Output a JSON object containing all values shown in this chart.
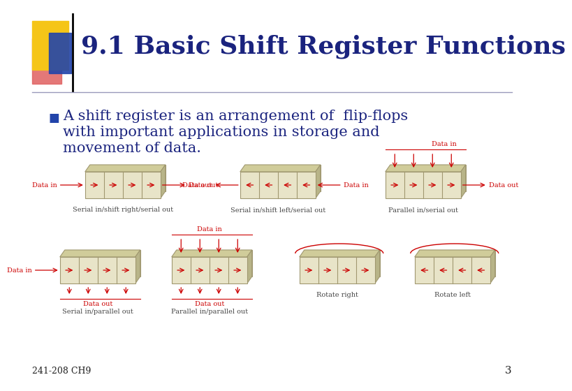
{
  "title": "9.1 Basic Shift Register Functions",
  "title_color": "#1a237e",
  "bg_color": "#ffffff",
  "bullet_text_line1": "A shift register is an arrangement of  flip-flops",
  "bullet_text_line2": "with important applications in storage and",
  "bullet_text_line3": "movement of data.",
  "bullet_color": "#1a237e",
  "accent_yellow": "#f5c518",
  "accent_red": "#cc2222",
  "accent_blue": "#2244aa",
  "accent_pink": "#e06060",
  "register_fill": "#e8e4c8",
  "register_edge": "#a09870",
  "register_top": "#d0cc9a",
  "register_side": "#b8b488",
  "register_back": "#c8c49a",
  "arrow_color": "#cc0000",
  "label_color": "#cc0000",
  "caption_color": "#444444",
  "footer_text": "241-208 CH9",
  "page_num": "3"
}
